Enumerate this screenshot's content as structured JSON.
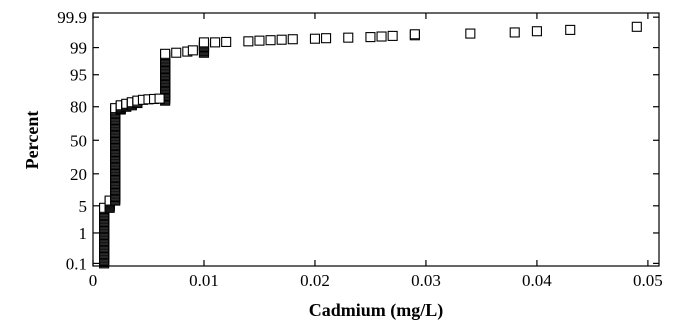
{
  "chart_data": {
    "type": "scatter",
    "xlabel": "Cadmium (mg/L)",
    "ylabel": "Percent",
    "y_scale": "normal-probability",
    "x_ticks": [
      0,
      0.01,
      0.02,
      0.03,
      0.04,
      0.05
    ],
    "x_tick_labels": [
      "0",
      "0.01",
      "0.02",
      "0.03",
      "0.04",
      "0.05"
    ],
    "y_ticks": [
      0.1,
      1,
      5,
      20,
      50,
      80,
      95,
      99,
      99.9
    ],
    "y_tick_labels": [
      "0.1",
      "1",
      "5",
      "20",
      "50",
      "80",
      "95",
      "99",
      "99.9"
    ],
    "xlim": [
      0,
      0.051
    ],
    "ylim": [
      0.08,
      99.93
    ],
    "grid": false,
    "marker": "open-square",
    "series": [
      {
        "dense_runs": [
          {
            "x": 0.001,
            "y_from": 0.1,
            "y_to": 4.5
          },
          {
            "x": 0.0015,
            "y_from": 4.5,
            "y_to": 6.5
          },
          {
            "x": 0.002,
            "y_from": 6.5,
            "y_to": 79
          },
          {
            "x": 0.0025,
            "y_from": 78,
            "y_to": 81
          },
          {
            "x": 0.003,
            "y_from": 80,
            "y_to": 82
          },
          {
            "x": 0.0035,
            "y_from": 81,
            "y_to": 83
          },
          {
            "x": 0.004,
            "y_from": 82.5,
            "y_to": 84
          },
          {
            "x": 0.0065,
            "y_from": 84,
            "y_to": 98.5
          },
          {
            "x": 0.01,
            "y_from": 98.6,
            "y_to": 99.3
          }
        ],
        "points": [
          {
            "x": 0.0045,
            "y": 84.5
          },
          {
            "x": 0.005,
            "y": 84.8
          },
          {
            "x": 0.0055,
            "y": 85
          },
          {
            "x": 0.006,
            "y": 85.2
          },
          {
            "x": 0.0075,
            "y": 98.6
          },
          {
            "x": 0.0085,
            "y": 98.7
          },
          {
            "x": 0.009,
            "y": 98.8
          },
          {
            "x": 0.011,
            "y": 99.3
          },
          {
            "x": 0.012,
            "y": 99.32
          },
          {
            "x": 0.014,
            "y": 99.35
          },
          {
            "x": 0.015,
            "y": 99.38
          },
          {
            "x": 0.016,
            "y": 99.4
          },
          {
            "x": 0.017,
            "y": 99.42
          },
          {
            "x": 0.018,
            "y": 99.44
          },
          {
            "x": 0.02,
            "y": 99.46
          },
          {
            "x": 0.021,
            "y": 99.48
          },
          {
            "x": 0.023,
            "y": 99.5
          },
          {
            "x": 0.025,
            "y": 99.52
          },
          {
            "x": 0.026,
            "y": 99.54
          },
          {
            "x": 0.027,
            "y": 99.56
          },
          {
            "x": 0.029,
            "y": 99.58
          },
          {
            "x": 0.029,
            "y": 99.61
          },
          {
            "x": 0.034,
            "y": 99.63
          },
          {
            "x": 0.038,
            "y": 99.66
          },
          {
            "x": 0.04,
            "y": 99.69
          },
          {
            "x": 0.043,
            "y": 99.72
          },
          {
            "x": 0.049,
            "y": 99.78
          }
        ]
      }
    ]
  }
}
